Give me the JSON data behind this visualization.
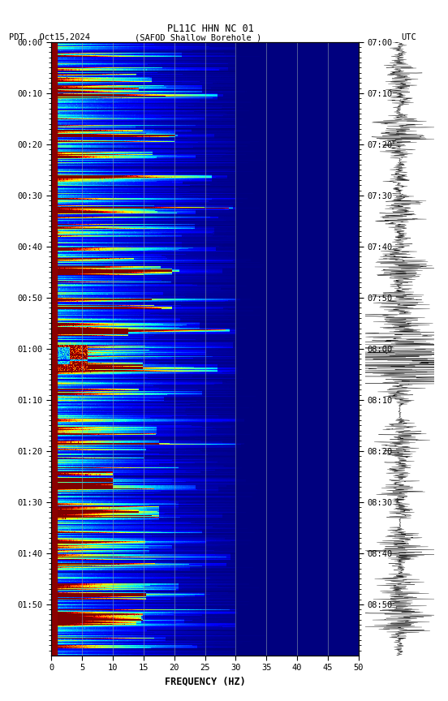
{
  "title_line1": "PL11C HHN NC 01",
  "title_line2_left": "PDT   Oct15,2024      (SAFOD Shallow Borehole )",
  "title_line2_right": "UTC",
  "xlabel": "FREQUENCY (HZ)",
  "freq_min": 0,
  "freq_max": 50,
  "freq_ticks": [
    0,
    5,
    10,
    15,
    20,
    25,
    30,
    35,
    40,
    45,
    50
  ],
  "time_left_labels": [
    "00:00",
    "00:10",
    "00:20",
    "00:30",
    "00:40",
    "00:50",
    "01:00",
    "01:10",
    "01:20",
    "01:30",
    "01:40",
    "01:50"
  ],
  "time_right_labels": [
    "07:00",
    "07:10",
    "07:20",
    "07:30",
    "07:40",
    "07:50",
    "08:00",
    "08:10",
    "08:20",
    "08:30",
    "08:40",
    "08:50"
  ],
  "vertical_lines_freq": [
    5,
    10,
    15,
    20,
    25,
    30,
    35,
    40,
    45
  ],
  "vline_color": "#8899aa",
  "vline_alpha": 0.6,
  "background_color": "#ffffff",
  "spectrogram_left_strip_color": "#8B0000",
  "cmap": "jet",
  "seed": 12345
}
